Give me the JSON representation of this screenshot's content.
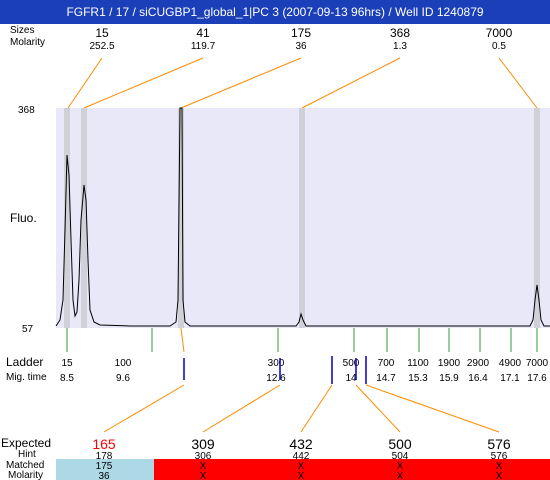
{
  "title": "FGFR1 / 17 / siCUGBP1_global_1|PC 3 (2007-09-13 96hrs) / Well ID 1240879",
  "top_rows": {
    "label_sizes": "Sizes",
    "label_molarity": "Molarity",
    "peaks": [
      {
        "size": "15",
        "molarity": "252.5"
      },
      {
        "size": "41",
        "molarity": "119.7"
      },
      {
        "size": "175",
        "molarity": "36"
      },
      {
        "size": "368",
        "molarity": "1.3"
      },
      {
        "size": "7000",
        "molarity": "0.5"
      }
    ]
  },
  "y_axis": {
    "top": "368",
    "bottom": "57",
    "label": "Fluo."
  },
  "ladder": {
    "label": "Ladder",
    "mig_label": "Mig. time",
    "points": [
      {
        "size": "15",
        "time": "8.5"
      },
      {
        "size": "100",
        "time": "9.6"
      },
      {
        "size": "300",
        "time": "12.6"
      },
      {
        "size": "500",
        "time": "14"
      },
      {
        "size": "700",
        "time": "14.7"
      },
      {
        "size": "1100",
        "time": "15.3"
      },
      {
        "size": "1900",
        "time": "15.9"
      },
      {
        "size": "2900",
        "time": "16.4"
      },
      {
        "size": "4900",
        "time": "17.1"
      },
      {
        "size": "7000",
        "time": "17.6"
      }
    ]
  },
  "expected": {
    "label_expected": "Expected",
    "label_hint": "Hint",
    "label_matched": "Matched",
    "label_molarity": "Molarity",
    "cols": [
      {
        "expected": "165",
        "hint": "178",
        "matched": "175",
        "molarity": "36",
        "color": "#ff0000"
      },
      {
        "expected": "309",
        "hint": "306",
        "matched": "X",
        "molarity": "X",
        "color": "#000000"
      },
      {
        "expected": "432",
        "hint": "442",
        "matched": "X",
        "molarity": "X",
        "color": "#000000"
      },
      {
        "expected": "500",
        "hint": "504",
        "matched": "X",
        "molarity": "X",
        "color": "#000000"
      },
      {
        "expected": "576",
        "hint": "576",
        "matched": "X",
        "molarity": "X",
        "color": "#000000"
      }
    ]
  },
  "colors": {
    "title_bg": "#1a3fb8",
    "plot_bg": "#e8e8f8",
    "marker": "#d0d0d8",
    "matched_bg": "#add8e6",
    "unmatched_bg": "#ff0000",
    "connector": "#ff8c00"
  }
}
